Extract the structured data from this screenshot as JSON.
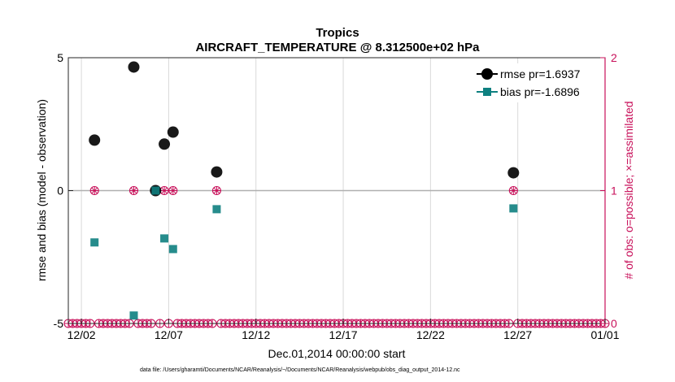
{
  "chart_data": {
    "type": "scatter",
    "title": "Tropics",
    "subtitle": "AIRCRAFT_TEMPERATURE @ 8.312500e+02 hPa",
    "xlabel": "Dec.01,2014 00:00:00 start",
    "ylabel": "rmse and bias (model - observation)",
    "y2label": "# of obs: o=possible; ×=assimilated",
    "xlim": [
      0.25,
      31.0
    ],
    "ylim": [
      -5,
      5
    ],
    "y2lim": [
      0,
      2
    ],
    "x_ticks": [
      {
        "value": 1.0,
        "label": "12/02"
      },
      {
        "value": 6.0,
        "label": "12/07"
      },
      {
        "value": 11.0,
        "label": "12/12"
      },
      {
        "value": 16.0,
        "label": "12/17"
      },
      {
        "value": 21.0,
        "label": "12/22"
      },
      {
        "value": 26.0,
        "label": "12/27"
      },
      {
        "value": 31.0,
        "label": "01/01"
      }
    ],
    "y_ticks": [
      {
        "value": 5,
        "label": "5"
      },
      {
        "value": 0,
        "label": "0"
      },
      {
        "value": -5,
        "label": "-5"
      }
    ],
    "y2_ticks": [
      {
        "value": 2,
        "label": "2"
      },
      {
        "value": 1,
        "label": "1"
      },
      {
        "value": 0,
        "label": "0"
      }
    ],
    "series": [
      {
        "name": "rmse pr=1.6937",
        "color": "#000000",
        "marker": "circle",
        "x": [
          1.75,
          4.0,
          5.25,
          5.75,
          6.25,
          8.75,
          25.75
        ],
        "y": [
          1.9,
          4.65,
          0.0,
          1.75,
          2.2,
          0.7,
          0.67
        ]
      },
      {
        "name": "bias pr=-1.6896",
        "color": "#0e8080",
        "marker": "square",
        "x": [
          1.75,
          4.0,
          5.25,
          5.75,
          6.25,
          8.75,
          25.75
        ],
        "y": [
          -1.95,
          -4.7,
          0.0,
          -1.8,
          -2.2,
          -0.7,
          -0.67
        ]
      }
    ],
    "obs_counts": {
      "color": "#c8105a",
      "step": 0.25,
      "x_start": 0.25,
      "x_end": 31.0,
      "one_count_x": [
        1.75,
        4.0,
        5.25,
        5.75,
        6.25,
        8.75,
        25.75
      ]
    },
    "zero_line": 0,
    "grid": "x-vertical",
    "legend_location": "top-right"
  },
  "footer": {
    "datafile": "data file: /Users/gharamti/Documents/NCAR/Reanalysis/~/Documents/NCAR/Reanalysis/webpub/obs_diag_output_2014-12.nc"
  }
}
